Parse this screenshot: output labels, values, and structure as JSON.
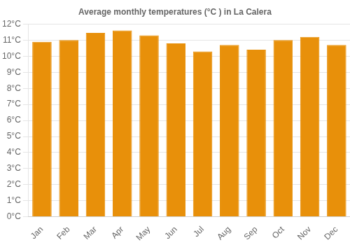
{
  "chart_data": {
    "type": "bar",
    "title": "Average monthly temperatures (°C ) in La Calera",
    "categories": [
      "Jan",
      "Feb",
      "Mar",
      "Apr",
      "May",
      "Jun",
      "Jul",
      "Aug",
      "Sep",
      "Oct",
      "Nov",
      "Dec"
    ],
    "values": [
      10.9,
      11.0,
      11.45,
      11.6,
      11.3,
      10.8,
      10.3,
      10.7,
      10.4,
      11.0,
      11.2,
      10.7
    ],
    "color": "#E8900A",
    "ylim": [
      0,
      12
    ],
    "yticks": [
      {
        "value": 0,
        "label": "0°C"
      },
      {
        "value": 1,
        "label": "1°C"
      },
      {
        "value": 2,
        "label": "2°C"
      },
      {
        "value": 3,
        "label": "3°C"
      },
      {
        "value": 4,
        "label": "4°C"
      },
      {
        "value": 5,
        "label": "5°C"
      },
      {
        "value": 6,
        "label": "6°C"
      },
      {
        "value": 7,
        "label": "7°C"
      },
      {
        "value": 8,
        "label": "8°C"
      },
      {
        "value": 9,
        "label": "9°C"
      },
      {
        "value": 10,
        "label": "10°C"
      },
      {
        "value": 11,
        "label": "11°C"
      },
      {
        "value": 12,
        "label": "12°C"
      }
    ],
    "grid": true
  }
}
